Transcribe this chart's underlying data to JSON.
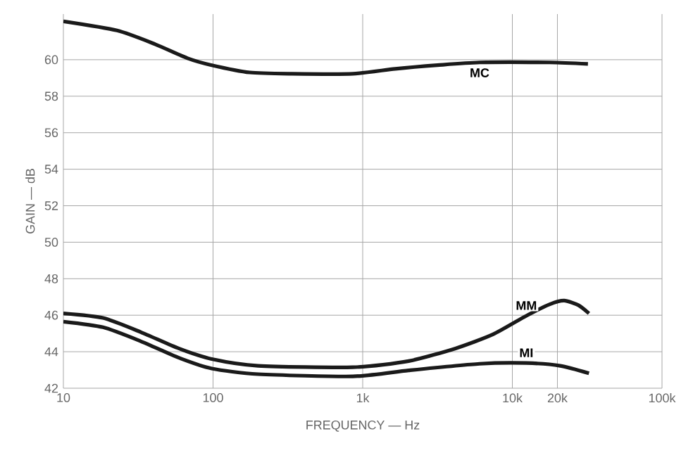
{
  "chart_data": {
    "type": "line",
    "xlabel": "FREQUENCY — Hz",
    "ylabel": "GAIN — dB",
    "log": "x",
    "grid": true,
    "xlim": [
      10,
      100000
    ],
    "ylim": [
      42,
      62.5
    ],
    "xticks": [
      10,
      100,
      {
        "value": 1000,
        "label": "1k"
      },
      {
        "value": 10000,
        "label": "10k"
      },
      {
        "value": 20000,
        "label": "20k"
      },
      {
        "value": 100000,
        "label": "100k"
      }
    ],
    "yticks": [
      42,
      44,
      46,
      48,
      50,
      52,
      54,
      56,
      58,
      60
    ],
    "series": [
      {
        "name": "MC",
        "color": "#1a1a1a",
        "x": [
          10,
          22.8,
          41,
          67.6,
          98,
          176,
          337,
          860,
          1650,
          3160,
          6040,
          17800,
          32000
        ],
        "values": [
          62.1,
          61.6,
          60.85,
          60.08,
          59.7,
          59.3,
          59.23,
          59.23,
          59.5,
          59.7,
          59.85,
          59.85,
          59.77
        ]
      },
      {
        "name": "MM",
        "color": "#1a1a1a",
        "x": [
          10,
          18.4,
          33,
          59,
          98,
          200,
          860,
          2030,
          4170,
          7420,
          12400,
          17800,
          22200,
          27600,
          32500
        ],
        "values": [
          46.1,
          45.85,
          45.07,
          44.18,
          43.6,
          43.23,
          43.15,
          43.49,
          44.18,
          44.95,
          45.97,
          46.6,
          46.8,
          46.55,
          46.1
        ]
      },
      {
        "name": "MI",
        "color": "#1a1a1a",
        "x": [
          10,
          18.4,
          33,
          59,
          98,
          200,
          860,
          2030,
          6040,
          12400,
          20900,
          32500
        ],
        "values": [
          45.65,
          45.34,
          44.57,
          43.67,
          43.08,
          42.77,
          42.65,
          42.98,
          43.34,
          43.38,
          43.23,
          42.82
        ]
      }
    ]
  }
}
